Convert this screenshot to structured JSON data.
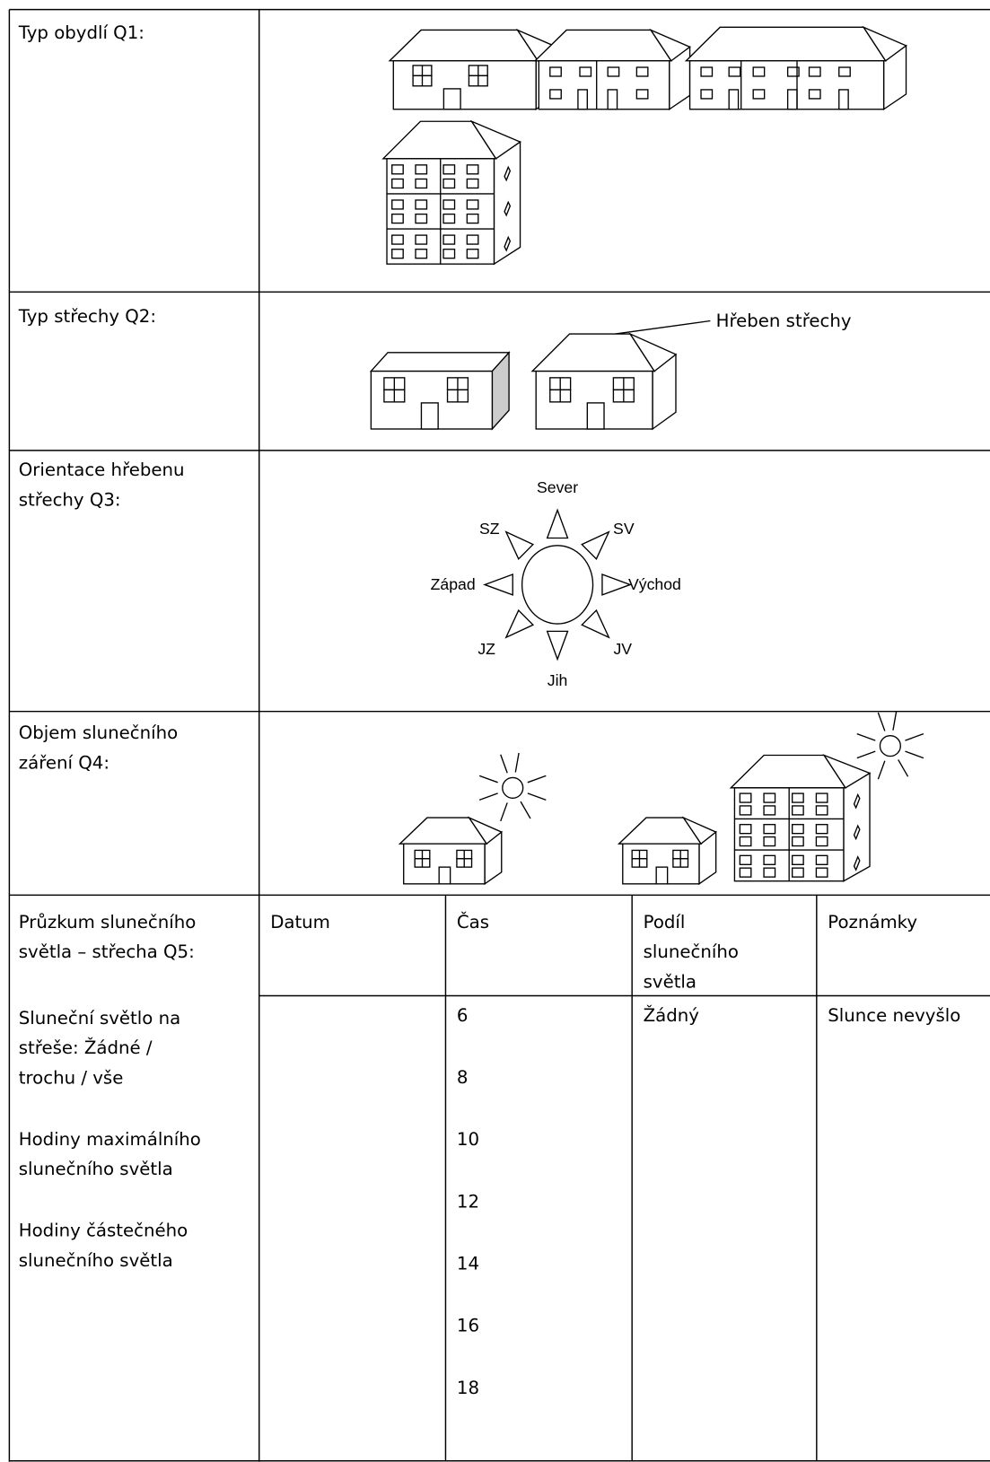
{
  "rows": [
    {
      "label": [
        "Typ obydlí Q1:"
      ]
    },
    {
      "label": [
        "Typ střechy Q2:"
      ],
      "callout": "Hřeben střechy"
    },
    {
      "label": [
        "Orientace hřebenu",
        "střechy Q3:"
      ],
      "compass": {
        "n": "Sever",
        "nw": "SZ",
        "ne": "SV",
        "w": "Západ",
        "e": "Východ",
        "sw": "JZ",
        "se": "JV",
        "s": "Jih"
      }
    },
    {
      "label": [
        "Objem slunečního",
        "záření Q4:"
      ]
    },
    {
      "label": [
        "Průzkum slunečního",
        "světla – střecha Q5:"
      ],
      "notes": [
        [
          "Sluneční světlo na",
          "střeše: Žádné /",
          "trochu / vše"
        ],
        [
          "Hodiny maximálního",
          "slunečního světla"
        ],
        [
          "Hodiny částečného",
          "slunečního světla"
        ]
      ]
    }
  ],
  "survey": {
    "headers": [
      [
        "Datum"
      ],
      [
        "Čas"
      ],
      [
        "Podíl",
        "slunečního",
        "světla"
      ],
      [
        "Poznámky"
      ]
    ],
    "times": [
      6,
      8,
      10,
      12,
      14,
      16,
      18
    ],
    "first_share": "Žádný",
    "first_note": "Slunce nevyšlo"
  }
}
